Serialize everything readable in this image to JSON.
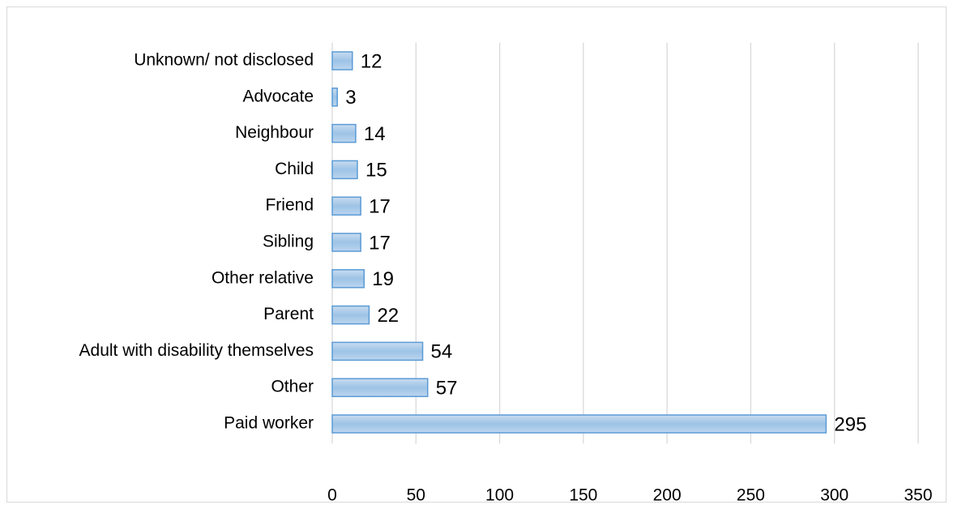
{
  "chart_data": {
    "type": "bar",
    "orientation": "horizontal",
    "categories": [
      "Unknown/ not disclosed",
      "Advocate",
      "Neighbour",
      "Child",
      "Friend",
      "Sibling",
      "Other relative",
      "Parent",
      "Adult with disability themselves",
      "Other",
      "Paid worker"
    ],
    "values": [
      12,
      3,
      14,
      15,
      17,
      17,
      19,
      22,
      54,
      57,
      295
    ],
    "color": "#9dc3e6",
    "xlim": [
      0,
      350
    ],
    "xticks": [
      0,
      50,
      100,
      150,
      200,
      250,
      300,
      350
    ],
    "grid": true
  }
}
